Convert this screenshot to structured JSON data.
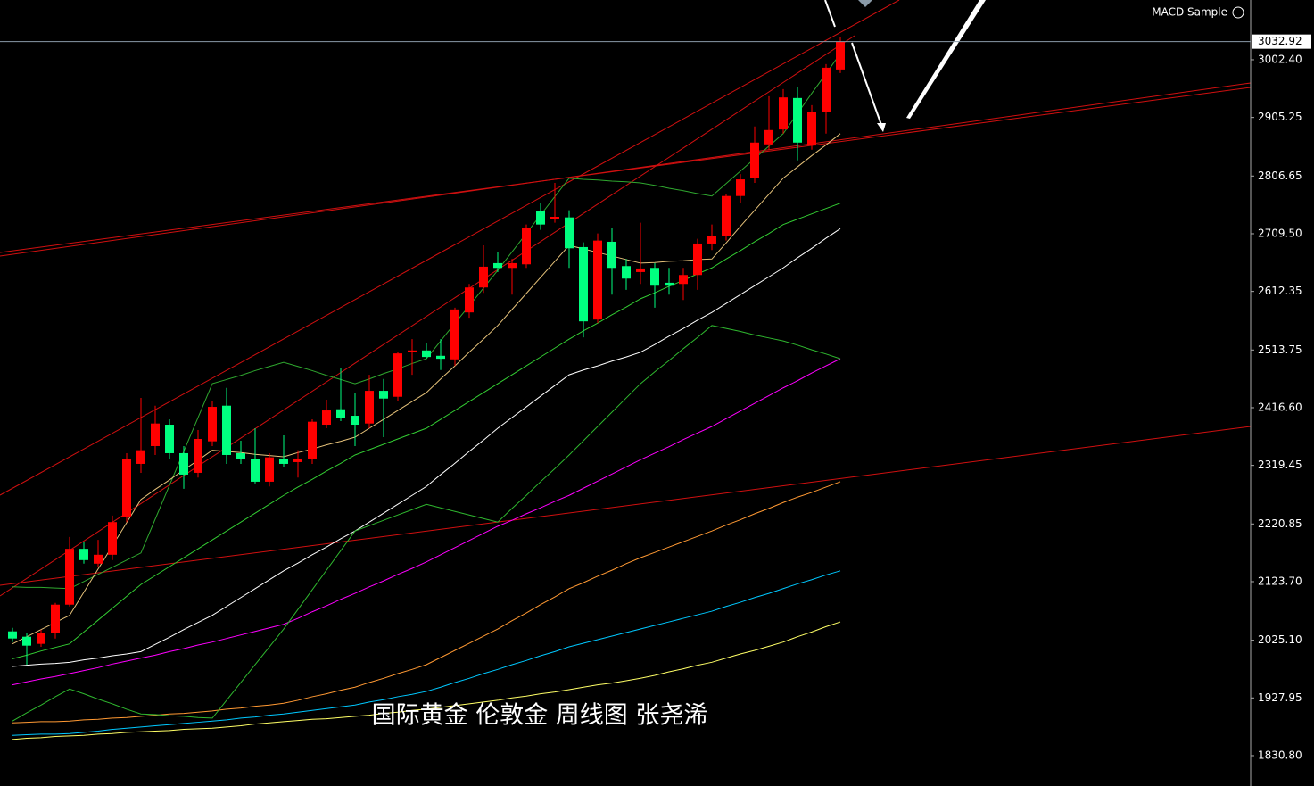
{
  "chart_data": {
    "type": "candlestick",
    "title": "MACD Sample",
    "annotation": "国际黄金 伦敦金 周线图 张尧浠",
    "last_price": 3032.92,
    "ylim": [
      1779.7,
      3103.0
    ],
    "yticks": [
      {
        "value": 3002.4,
        "label": "3002.40"
      },
      2905.25,
      2806.65,
      {
        "value": 2709.5,
        "label": "2709.50"
      },
      2612.35,
      2513.75,
      {
        "value": 2416.6,
        "label": "2416.60"
      },
      2319.45,
      2220.85,
      {
        "value": 2123.7,
        "label": "2123.70"
      },
      {
        "value": 2025.1,
        "label": "2025.10"
      },
      1927.95,
      {
        "value": 1830.8,
        "label": "1830.80"
      }
    ],
    "grid": false,
    "up_color": "#ff0000",
    "down_color": "#00ff80",
    "ohlc": [
      [
        2040,
        2046,
        2022,
        2028
      ],
      [
        2031,
        2037,
        1984,
        2016
      ],
      [
        2019,
        2043,
        2014,
        2037
      ],
      [
        2037,
        2088,
        2028,
        2085
      ],
      [
        2085,
        2199,
        2082,
        2179
      ],
      [
        2179,
        2190,
        2154,
        2160
      ],
      [
        2154,
        2194,
        2149,
        2169
      ],
      [
        2169,
        2235,
        2160,
        2224
      ],
      [
        2232,
        2340,
        2224,
        2330
      ],
      [
        2322,
        2433,
        2307,
        2345
      ],
      [
        2352,
        2420,
        2337,
        2390
      ],
      [
        2388,
        2397,
        2330,
        2340
      ],
      [
        2340,
        2352,
        2280,
        2304
      ],
      [
        2307,
        2379,
        2299,
        2364
      ],
      [
        2360,
        2427,
        2352,
        2418
      ],
      [
        2420,
        2450,
        2322,
        2337
      ],
      [
        2340,
        2361,
        2322,
        2330
      ],
      [
        2330,
        2382,
        2289,
        2292
      ],
      [
        2292,
        2340,
        2284,
        2333
      ],
      [
        2331,
        2370,
        2316,
        2322
      ],
      [
        2325,
        2345,
        2299,
        2331
      ],
      [
        2330,
        2397,
        2322,
        2393
      ],
      [
        2388,
        2430,
        2382,
        2412
      ],
      [
        2414,
        2484,
        2394,
        2400
      ],
      [
        2403,
        2442,
        2352,
        2388
      ],
      [
        2390,
        2472,
        2382,
        2445
      ],
      [
        2445,
        2465,
        2367,
        2432
      ],
      [
        2435,
        2511,
        2427,
        2508
      ],
      [
        2510,
        2532,
        2472,
        2513
      ],
      [
        2513,
        2525,
        2499,
        2502
      ],
      [
        2504,
        2532,
        2480,
        2499
      ],
      [
        2498,
        2585,
        2487,
        2582
      ],
      [
        2577,
        2625,
        2568,
        2619
      ],
      [
        2619,
        2690,
        2610,
        2654
      ],
      [
        2660,
        2679,
        2645,
        2652
      ],
      [
        2652,
        2667,
        2607,
        2660
      ],
      [
        2658,
        2725,
        2652,
        2720
      ],
      [
        2747,
        2761,
        2716,
        2725
      ],
      [
        2735,
        2795,
        2728,
        2738
      ],
      [
        2737,
        2749,
        2652,
        2685
      ],
      [
        2687,
        2695,
        2535,
        2562
      ],
      [
        2565,
        2710,
        2559,
        2698
      ],
      [
        2696,
        2720,
        2607,
        2652
      ],
      [
        2655,
        2667,
        2615,
        2634
      ],
      [
        2645,
        2728,
        2625,
        2651
      ],
      [
        2652,
        2660,
        2585,
        2622
      ],
      [
        2627,
        2652,
        2607,
        2622
      ],
      [
        2625,
        2652,
        2598,
        2640
      ],
      [
        2640,
        2701,
        2615,
        2693
      ],
      [
        2693,
        2725,
        2682,
        2705
      ],
      [
        2705,
        2776,
        2698,
        2773
      ],
      [
        2773,
        2810,
        2761,
        2801
      ],
      [
        2803,
        2890,
        2795,
        2863
      ],
      [
        2860,
        2941,
        2851,
        2884
      ],
      [
        2885,
        2953,
        2878,
        2939
      ],
      [
        2938,
        2956,
        2833,
        2863
      ],
      [
        2858,
        2926,
        2851,
        2914
      ],
      [
        2914,
        2995,
        2878,
        2989
      ],
      [
        2986,
        3040,
        2980,
        3032.92
      ]
    ],
    "overlays": [
      {
        "color": "#ffff66",
        "values": [
          1858,
          1860,
          1861,
          1863,
          1864,
          1865,
          1867,
          1868,
          1870,
          1871,
          1872,
          1873,
          1875,
          1876,
          1877,
          1879,
          1881,
          1884,
          1886,
          1888,
          1890,
          1892,
          1893,
          1895,
          1897,
          1899,
          1902,
          1904,
          1907,
          1909,
          1912,
          1915,
          1918,
          1921,
          1924,
          1928,
          1931,
          1935,
          1938,
          1942,
          1946,
          1950,
          1953,
          1957,
          1961,
          1966,
          1972,
          1977,
          1983,
          1988,
          1995,
          2002,
          2008,
          2015,
          2022,
          2031,
          2039,
          2048,
          2056
        ]
      },
      {
        "color": "#00c8ff",
        "values": [
          1865,
          1866,
          1867,
          1867,
          1868,
          1870,
          1872,
          1875,
          1877,
          1879,
          1881,
          1883,
          1885,
          1887,
          1889,
          1891,
          1894,
          1896,
          1899,
          1901,
          1904,
          1907,
          1910,
          1913,
          1916,
          1921,
          1925,
          1930,
          1934,
          1939,
          1946,
          1954,
          1961,
          1969,
          1976,
          1984,
          1991,
          1999,
          2006,
          2014,
          2020,
          2026,
          2032,
          2038,
          2044,
          2050,
          2056,
          2062,
          2068,
          2074,
          2082,
          2089,
          2097,
          2104,
          2112,
          2120,
          2127,
          2135,
          2142
        ]
      },
      {
        "color": "#ff9933",
        "values": [
          1886,
          1887,
          1888,
          1888,
          1889,
          1891,
          1892,
          1894,
          1895,
          1897,
          1899,
          1901,
          1902,
          1904,
          1906,
          1909,
          1911,
          1914,
          1916,
          1919,
          1924,
          1930,
          1935,
          1941,
          1946,
          1954,
          1961,
          1969,
          1976,
          1984,
          1996,
          2008,
          2020,
          2032,
          2044,
          2058,
          2071,
          2085,
          2098,
          2112,
          2122,
          2133,
          2143,
          2154,
          2164,
          2173,
          2182,
          2191,
          2200,
          2209,
          2219,
          2228,
          2238,
          2247,
          2257,
          2266,
          2274,
          2283,
          2292
        ]
      },
      {
        "color": "#ff00ff",
        "values": [
          1950,
          1955,
          1960,
          1964,
          1969,
          1974,
          1979,
          1985,
          1990,
          1995,
          2000,
          2006,
          2011,
          2017,
          2022,
          2028,
          2034,
          2040,
          2046,
          2052,
          2062,
          2073,
          2083,
          2094,
          2104,
          2115,
          2125,
          2136,
          2146,
          2157,
          2169,
          2181,
          2193,
          2205,
          2217,
          2227,
          2238,
          2248,
          2259,
          2269,
          2281,
          2293,
          2305,
          2317,
          2329,
          2340,
          2351,
          2363,
          2374,
          2385,
          2398,
          2411,
          2424,
          2437,
          2450,
          2462,
          2475,
          2487,
          2499
        ]
      },
      {
        "color": "#ffffff",
        "values": [
          1981,
          1983,
          1985,
          1986,
          1988,
          1992,
          1995,
          1999,
          2002,
          2006,
          2018,
          2030,
          2043,
          2055,
          2067,
          2082,
          2097,
          2112,
          2127,
          2142,
          2155,
          2169,
          2182,
          2196,
          2209,
          2224,
          2239,
          2254,
          2269,
          2284,
          2304,
          2323,
          2343,
          2362,
          2382,
          2400,
          2418,
          2436,
          2454,
          2472,
          2480,
          2487,
          2495,
          2502,
          2510,
          2523,
          2537,
          2550,
          2564,
          2577,
          2592,
          2607,
          2622,
          2637,
          2652,
          2669,
          2685,
          2702,
          2718
        ]
      },
      {
        "color": "#33cc33",
        "values": [
          1994,
          2000,
          2007,
          2013,
          2019,
          2039,
          2059,
          2079,
          2099,
          2119,
          2134,
          2149,
          2164,
          2179,
          2194,
          2209,
          2224,
          2239,
          2254,
          2269,
          2283,
          2296,
          2310,
          2323,
          2337,
          2346,
          2355,
          2364,
          2373,
          2382,
          2397,
          2412,
          2427,
          2442,
          2457,
          2472,
          2487,
          2502,
          2517,
          2532,
          2546,
          2559,
          2573,
          2586,
          2600,
          2610,
          2621,
          2631,
          2642,
          2652,
          2667,
          2681,
          2696,
          2710,
          2725,
          2734,
          2743,
          2752,
          2761
        ]
      },
      {
        "color": "#2fa82f",
        "values": [
          2115,
          2114,
          2114,
          2113,
          2112,
          2124,
          2136,
          2148,
          2160,
          2172,
          2229,
          2286,
          2343,
          2400,
          2457,
          2464,
          2471,
          2479,
          2486,
          2493,
          2486,
          2479,
          2471,
          2464,
          2457,
          2465,
          2474,
          2482,
          2491,
          2499,
          2529,
          2559,
          2588,
          2618,
          2648,
          2679,
          2710,
          2741,
          2772,
          2803,
          2801,
          2800,
          2798,
          2797,
          2795,
          2791,
          2786,
          2782,
          2777,
          2773,
          2794,
          2815,
          2836,
          2857,
          2878,
          2912,
          2946,
          2979,
          3013
        ]
      },
      {
        "color": "#2fb82f",
        "values": [
          1889,
          1903,
          1916,
          1930,
          1943,
          1935,
          1926,
          1918,
          1909,
          1901,
          1900,
          1898,
          1897,
          1895,
          1894,
          1924,
          1954,
          1984,
          2014,
          2044,
          2077,
          2110,
          2143,
          2176,
          2209,
          2218,
          2227,
          2236,
          2245,
          2254,
          2248,
          2242,
          2236,
          2230,
          2224,
          2247,
          2269,
          2292,
          2314,
          2337,
          2361,
          2385,
          2409,
          2433,
          2457,
          2477,
          2496,
          2516,
          2535,
          2555,
          2550,
          2545,
          2539,
          2534,
          2529,
          2522,
          2514,
          2507,
          2499
        ]
      },
      {
        "color": "#e6c27a",
        "values": [
          2019,
          2031,
          2043,
          2055,
          2067,
          2106,
          2145,
          2184,
          2223,
          2262,
          2279,
          2295,
          2312,
          2328,
          2345,
          2343,
          2341,
          2338,
          2336,
          2334,
          2341,
          2347,
          2354,
          2360,
          2367,
          2382,
          2397,
          2412,
          2427,
          2442,
          2465,
          2487,
          2510,
          2532,
          2555,
          2582,
          2609,
          2636,
          2663,
          2690,
          2684,
          2678,
          2672,
          2666,
          2660,
          2661,
          2663,
          2664,
          2666,
          2667,
          2694,
          2722,
          2749,
          2776,
          2803,
          2822,
          2841,
          2859,
          2878
        ]
      }
    ]
  }
}
